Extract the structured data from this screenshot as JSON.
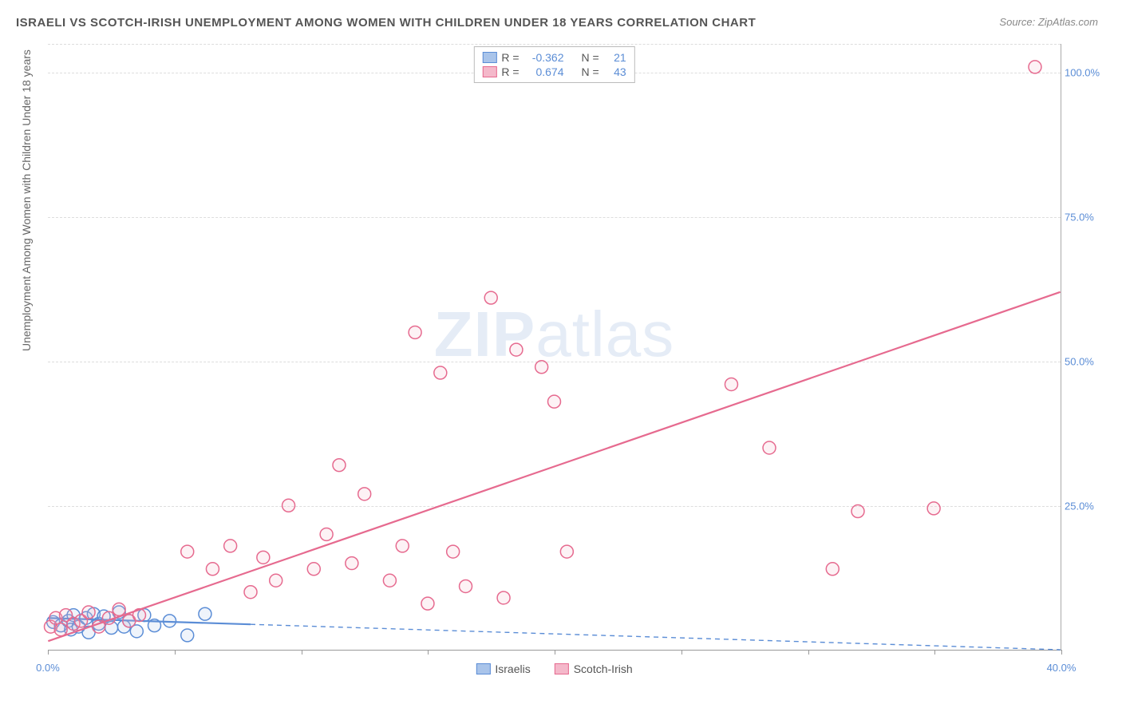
{
  "title": "ISRAELI VS SCOTCH-IRISH UNEMPLOYMENT AMONG WOMEN WITH CHILDREN UNDER 18 YEARS CORRELATION CHART",
  "source_label": "Source:",
  "source_value": "ZipAtlas.com",
  "y_axis_label": "Unemployment Among Women with Children Under 18 years",
  "watermark_bold": "ZIP",
  "watermark_light": "atlas",
  "chart": {
    "type": "scatter",
    "xlim": [
      0,
      40
    ],
    "ylim": [
      0,
      105
    ],
    "x_ticks": [
      0,
      5,
      10,
      15,
      20,
      25,
      30,
      35,
      40
    ],
    "x_tick_labels": {
      "0": "0.0%",
      "40": "40.0%"
    },
    "y_ticks": [
      25,
      50,
      75,
      100
    ],
    "y_tick_labels": {
      "25": "25.0%",
      "50": "50.0%",
      "75": "75.0%",
      "100": "100.0%"
    },
    "background_color": "#ffffff",
    "grid_color": "#dddddd",
    "axis_text_color": "#5b8dd6",
    "marker_radius": 8,
    "marker_stroke_width": 1.5,
    "marker_fill_opacity": 0.18,
    "trend_line_width": 2.2,
    "trend_dash_pattern": "6,5",
    "series": [
      {
        "key": "israelis",
        "label": "Israelis",
        "color_stroke": "#5b8dd6",
        "color_fill": "#a9c4ea",
        "R": "-0.362",
        "N": "21",
        "trend": {
          "x1": 0,
          "y1": 5.5,
          "x2": 40,
          "y2": 0,
          "solid_until_x": 8
        },
        "points": [
          {
            "x": 0.2,
            "y": 4.8
          },
          {
            "x": 0.5,
            "y": 4.2
          },
          {
            "x": 0.8,
            "y": 5.0
          },
          {
            "x": 0.9,
            "y": 3.5
          },
          {
            "x": 1.0,
            "y": 6.0
          },
          {
            "x": 1.2,
            "y": 4.0
          },
          {
            "x": 1.5,
            "y": 5.5
          },
          {
            "x": 1.6,
            "y": 3.0
          },
          {
            "x": 1.8,
            "y": 6.2
          },
          {
            "x": 2.0,
            "y": 4.5
          },
          {
            "x": 2.2,
            "y": 5.8
          },
          {
            "x": 2.5,
            "y": 3.8
          },
          {
            "x": 2.8,
            "y": 6.5
          },
          {
            "x": 3.0,
            "y": 4.0
          },
          {
            "x": 3.2,
            "y": 5.0
          },
          {
            "x": 3.5,
            "y": 3.2
          },
          {
            "x": 3.8,
            "y": 6.0
          },
          {
            "x": 4.2,
            "y": 4.2
          },
          {
            "x": 4.8,
            "y": 5.0
          },
          {
            "x": 5.5,
            "y": 2.5
          },
          {
            "x": 6.2,
            "y": 6.2
          }
        ]
      },
      {
        "key": "scotch_irish",
        "label": "Scotch-Irish",
        "color_stroke": "#e66a8f",
        "color_fill": "#f4b8ca",
        "R": "0.674",
        "N": "43",
        "trend": {
          "x1": 0,
          "y1": 1.5,
          "x2": 40,
          "y2": 62,
          "solid_until_x": 40
        },
        "points": [
          {
            "x": 0.1,
            "y": 4.0
          },
          {
            "x": 0.3,
            "y": 5.5
          },
          {
            "x": 0.5,
            "y": 3.5
          },
          {
            "x": 0.7,
            "y": 6.0
          },
          {
            "x": 1.0,
            "y": 4.5
          },
          {
            "x": 1.3,
            "y": 5.0
          },
          {
            "x": 1.6,
            "y": 6.5
          },
          {
            "x": 2.0,
            "y": 4.0
          },
          {
            "x": 2.4,
            "y": 5.5
          },
          {
            "x": 2.8,
            "y": 7.0
          },
          {
            "x": 3.2,
            "y": 5.0
          },
          {
            "x": 3.6,
            "y": 6.0
          },
          {
            "x": 5.5,
            "y": 17.0
          },
          {
            "x": 6.5,
            "y": 14.0
          },
          {
            "x": 7.2,
            "y": 18.0
          },
          {
            "x": 8.0,
            "y": 10.0
          },
          {
            "x": 8.5,
            "y": 16.0
          },
          {
            "x": 9.0,
            "y": 12.0
          },
          {
            "x": 9.5,
            "y": 25.0
          },
          {
            "x": 10.5,
            "y": 14.0
          },
          {
            "x": 11.0,
            "y": 20.0
          },
          {
            "x": 11.5,
            "y": 32.0
          },
          {
            "x": 12.0,
            "y": 15.0
          },
          {
            "x": 12.5,
            "y": 27.0
          },
          {
            "x": 13.5,
            "y": 12.0
          },
          {
            "x": 14.0,
            "y": 18.0
          },
          {
            "x": 14.5,
            "y": 55.0
          },
          {
            "x": 15.0,
            "y": 8.0
          },
          {
            "x": 15.5,
            "y": 48.0
          },
          {
            "x": 16.0,
            "y": 17.0
          },
          {
            "x": 16.5,
            "y": 11.0
          },
          {
            "x": 17.5,
            "y": 61.0
          },
          {
            "x": 18.0,
            "y": 9.0
          },
          {
            "x": 18.5,
            "y": 52.0
          },
          {
            "x": 19.5,
            "y": 49.0
          },
          {
            "x": 20.0,
            "y": 43.0
          },
          {
            "x": 20.5,
            "y": 17.0
          },
          {
            "x": 27.0,
            "y": 46.0
          },
          {
            "x": 28.5,
            "y": 35.0
          },
          {
            "x": 31.0,
            "y": 14.0
          },
          {
            "x": 32.0,
            "y": 24.0
          },
          {
            "x": 35.0,
            "y": 24.5
          },
          {
            "x": 39.0,
            "y": 101.0
          }
        ]
      }
    ]
  },
  "legend_top": {
    "r_label": "R =",
    "n_label": "N ="
  }
}
